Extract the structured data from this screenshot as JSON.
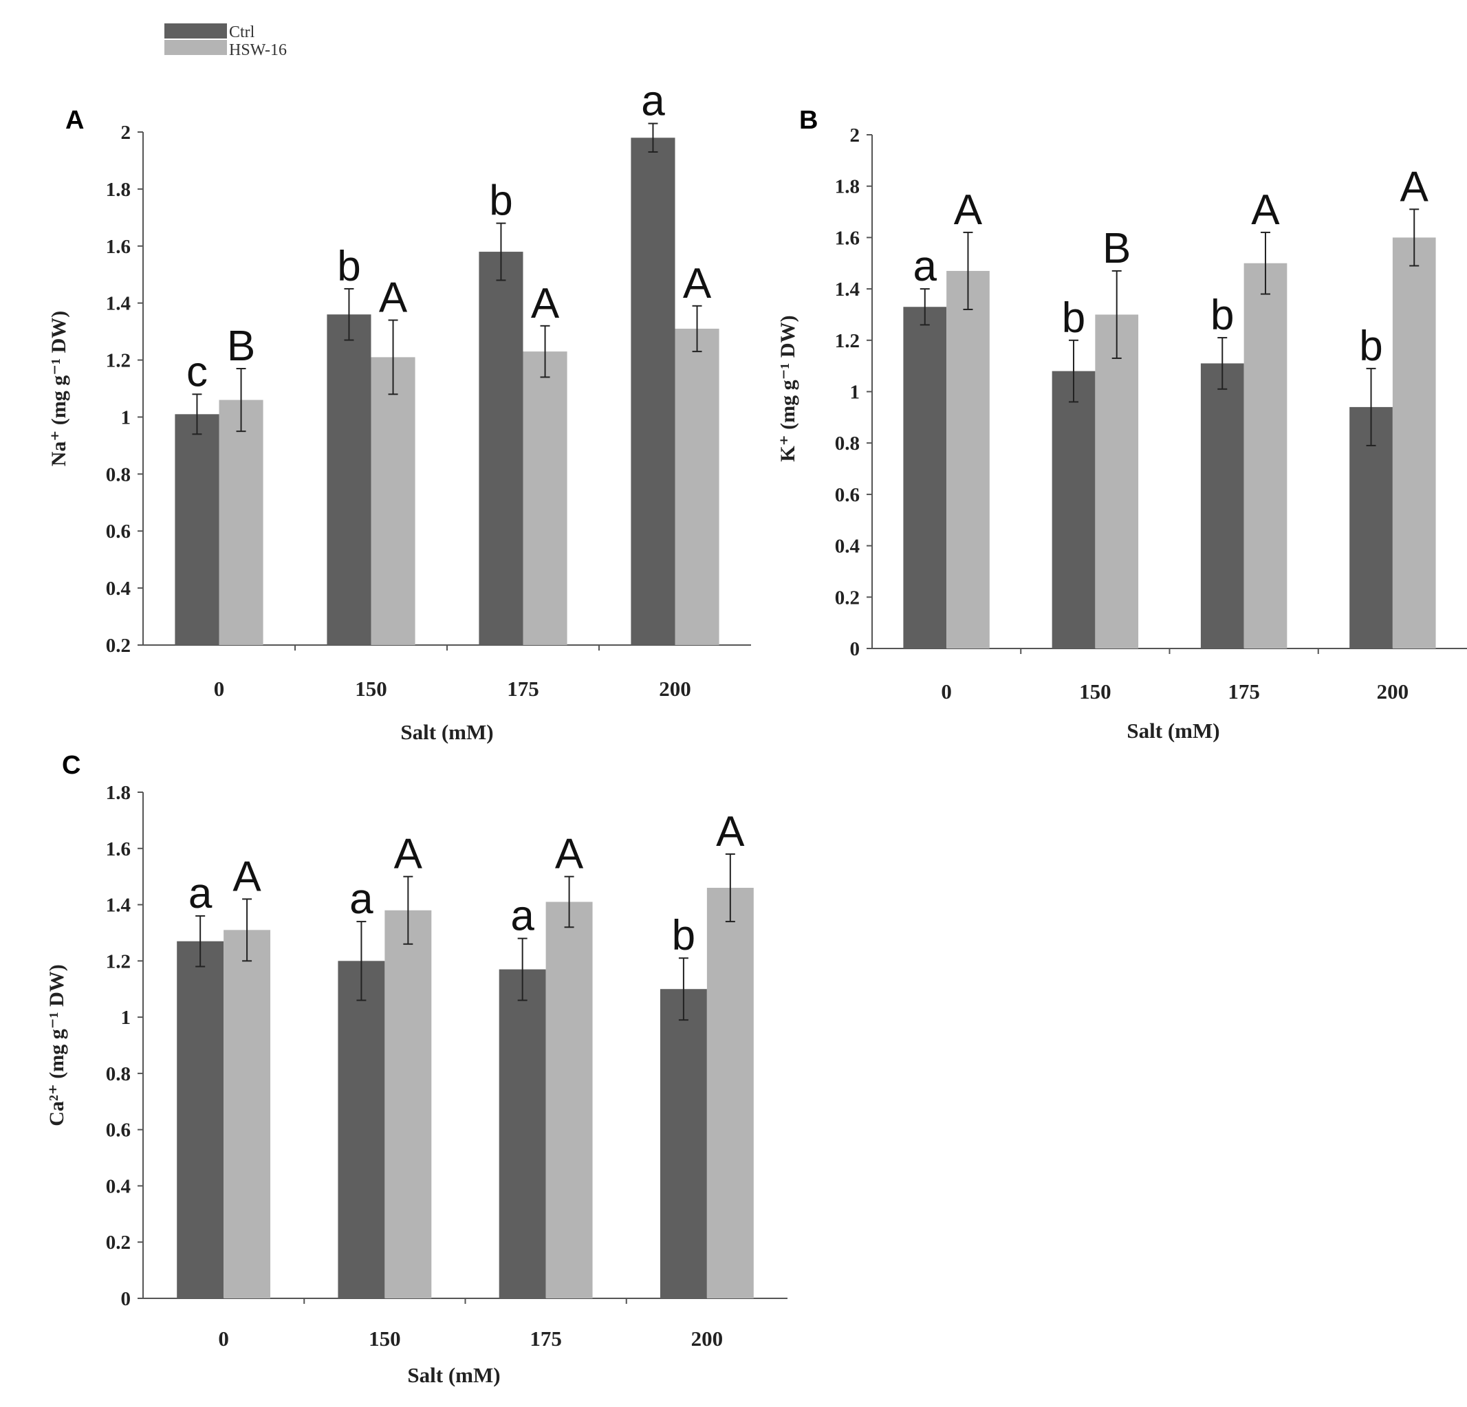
{
  "legend": {
    "placement": "top-left",
    "entries": [
      {
        "name": "Ctrl",
        "color": "#5f5f5f"
      },
      {
        "name": "HSW-16",
        "color": "#b4b4b4"
      }
    ]
  },
  "chart_data": [
    {
      "panel": "A",
      "type": "bar",
      "xlabel": "Salt (mM)",
      "ylabel": "Na⁺ (mg g⁻¹ DW)",
      "categories": [
        "0",
        "150",
        "175",
        "200"
      ],
      "ylim": [
        0.2,
        2
      ],
      "yticks": [
        0.2,
        0.4,
        0.6,
        0.8,
        1,
        1.2,
        1.4,
        1.6,
        1.8,
        2
      ],
      "ytick_labels": [
        "0.2",
        "0.4",
        "0.6",
        "0.8",
        "1",
        "1.2",
        "1.4",
        "1.6",
        "1.8",
        "2"
      ],
      "series": [
        {
          "name": "Ctrl",
          "values": [
            1.01,
            1.36,
            1.58,
            1.98
          ],
          "errors": [
            0.07,
            0.09,
            0.1,
            0.05
          ],
          "letters": [
            "c",
            "b",
            "b",
            "a"
          ]
        },
        {
          "name": "HSW-16",
          "values": [
            1.06,
            1.21,
            1.23,
            1.31
          ],
          "errors": [
            0.11,
            0.13,
            0.09,
            0.08
          ],
          "letters": [
            "B",
            "A",
            "A",
            "A"
          ]
        }
      ]
    },
    {
      "panel": "B",
      "type": "bar",
      "xlabel": "Salt (mM)",
      "ylabel": "K⁺ (mg g⁻¹ DW)",
      "categories": [
        "0",
        "150",
        "175",
        "200"
      ],
      "ylim": [
        0,
        2
      ],
      "yticks": [
        0,
        0.2,
        0.4,
        0.6,
        0.8,
        1,
        1.2,
        1.4,
        1.6,
        1.8,
        2
      ],
      "ytick_labels": [
        "0",
        "0.2",
        "0.4",
        "0.6",
        "0.8",
        "1",
        "1.2",
        "1.4",
        "1.6",
        "1.8",
        "2"
      ],
      "series": [
        {
          "name": "Ctrl",
          "values": [
            1.33,
            1.08,
            1.11,
            0.94
          ],
          "errors": [
            0.07,
            0.12,
            0.1,
            0.15
          ],
          "letters": [
            "a",
            "b",
            "b",
            "b"
          ]
        },
        {
          "name": "HSW-16",
          "values": [
            1.47,
            1.3,
            1.5,
            1.6
          ],
          "errors": [
            0.15,
            0.17,
            0.12,
            0.11
          ],
          "letters": [
            "A",
            "B",
            "A",
            "A"
          ]
        }
      ]
    },
    {
      "panel": "C",
      "type": "bar",
      "xlabel": "Salt (mM)",
      "ylabel": "Ca²⁺ (mg g⁻¹ DW)",
      "categories": [
        "0",
        "150",
        "175",
        "200"
      ],
      "ylim": [
        0,
        1.8
      ],
      "yticks": [
        0,
        0.2,
        0.4,
        0.6,
        0.8,
        1,
        1.2,
        1.4,
        1.6,
        1.8
      ],
      "ytick_labels": [
        "0",
        "0.2",
        "0.4",
        "0.6",
        "0.8",
        "1",
        "1.2",
        "1.4",
        "1.6",
        "1.8"
      ],
      "series": [
        {
          "name": "Ctrl",
          "values": [
            1.27,
            1.2,
            1.17,
            1.1
          ],
          "errors": [
            0.09,
            0.14,
            0.11,
            0.11
          ],
          "letters": [
            "a",
            "a",
            "a",
            "b"
          ]
        },
        {
          "name": "HSW-16",
          "values": [
            1.31,
            1.38,
            1.41,
            1.46
          ],
          "errors": [
            0.11,
            0.12,
            0.09,
            0.12
          ],
          "letters": [
            "A",
            "A",
            "A",
            "A"
          ]
        }
      ]
    }
  ]
}
